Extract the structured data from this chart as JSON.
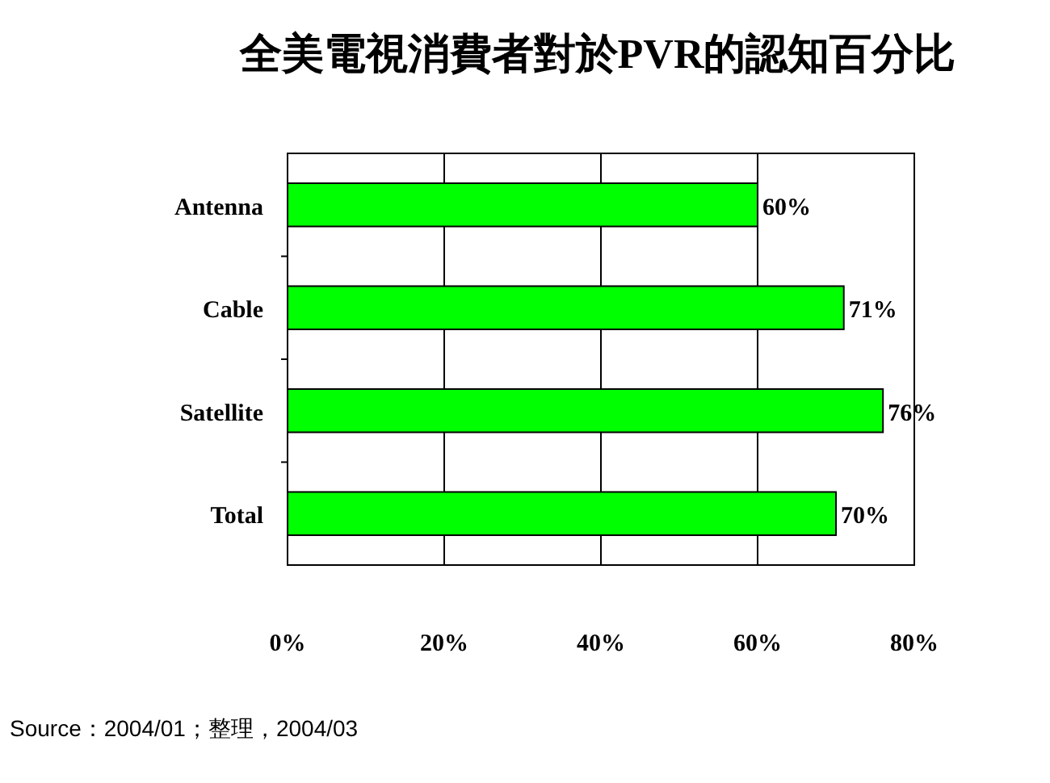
{
  "chart_data": {
    "type": "bar",
    "orientation": "horizontal",
    "title": "全美電視消費者對於PVR的認知百分比",
    "categories": [
      "Antenna",
      "Cable",
      "Satellite",
      "Total"
    ],
    "values": [
      60,
      71,
      76,
      70
    ],
    "value_labels": [
      "60%",
      "71%",
      "76%",
      "70%"
    ],
    "color": "#00ff00",
    "xlim": [
      0,
      80
    ],
    "xticks": [
      {
        "value": 0,
        "label": "0%"
      },
      {
        "value": 20,
        "label": "20%"
      },
      {
        "value": 40,
        "label": "40%"
      },
      {
        "value": 60,
        "label": "60%"
      },
      {
        "value": 80,
        "label": "80%"
      }
    ],
    "grid": "x",
    "annotations": [
      "Source：2004/01；整理，2004/03"
    ]
  }
}
